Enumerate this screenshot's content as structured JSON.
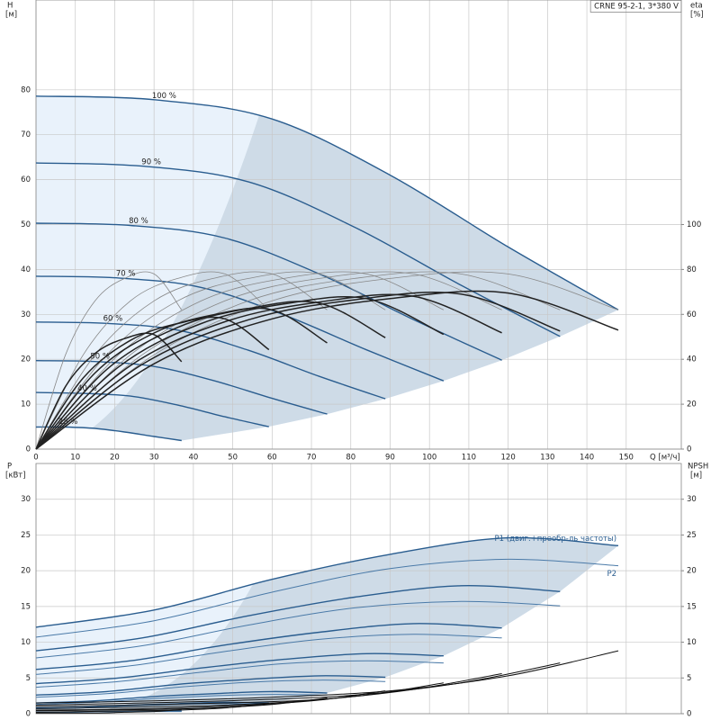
{
  "chart_data": [
    {
      "type": "line",
      "title": "CRNE 95-2-1, 3*380 V",
      "xlabel": "Q [м³/ч]",
      "ylabel": "H",
      "yunit": "[м]",
      "y2label": "eta",
      "y2unit": "[%]",
      "xlim": [
        0,
        164
      ],
      "xticks": [
        0,
        10,
        20,
        30,
        40,
        50,
        60,
        70,
        80,
        90,
        100,
        110,
        120,
        130,
        140,
        150
      ],
      "ylim": [
        0,
        100
      ],
      "yticks": [
        0,
        10,
        20,
        30,
        40,
        50,
        60,
        70,
        80
      ],
      "y2lim": [
        0,
        200
      ],
      "y2ticks": [
        0,
        20,
        40,
        60,
        80,
        100
      ],
      "grid": true,
      "series": [
        {
          "name": "100 %",
          "color": "#2a5d8f",
          "linewidth": 1.4,
          "x": [
            0,
            30,
            60,
            90,
            120,
            148
          ],
          "values": [
            78.6,
            77.8,
            73.5,
            61,
            45,
            31
          ]
        },
        {
          "name": "90 %",
          "color": "#2a5d8f",
          "linewidth": 1.4,
          "x": [
            0,
            27,
            54,
            81,
            108,
            133.2
          ],
          "values": [
            63.7,
            63.0,
            59.5,
            49.4,
            36.5,
            25.1
          ]
        },
        {
          "name": "80 %",
          "color": "#2a5d8f",
          "linewidth": 1.4,
          "x": [
            0,
            24,
            48,
            72,
            96,
            118.4
          ],
          "values": [
            50.3,
            49.8,
            47.0,
            39.0,
            28.8,
            19.8
          ]
        },
        {
          "name": "70 %",
          "color": "#2a5d8f",
          "linewidth": 1.4,
          "x": [
            0,
            21,
            42,
            63,
            84,
            103.6
          ],
          "values": [
            38.5,
            38.1,
            36.0,
            29.9,
            22.1,
            15.2
          ]
        },
        {
          "name": "60 %",
          "color": "#2a5d8f",
          "linewidth": 1.4,
          "x": [
            0,
            18,
            36,
            54,
            72,
            88.8
          ],
          "values": [
            28.3,
            28.0,
            26.5,
            22.0,
            16.2,
            11.2
          ]
        },
        {
          "name": "50 %",
          "color": "#2a5d8f",
          "linewidth": 1.4,
          "x": [
            0,
            15,
            30,
            45,
            60,
            74
          ],
          "values": [
            19.7,
            19.5,
            18.4,
            15.3,
            11.3,
            7.8
          ]
        },
        {
          "name": "40 %",
          "color": "#2a5d8f",
          "linewidth": 1.4,
          "x": [
            0,
            12,
            24,
            36,
            48,
            59.2
          ],
          "values": [
            12.6,
            12.4,
            11.8,
            9.8,
            7.2,
            5.0
          ]
        },
        {
          "name": "25 %",
          "color": "#2a5d8f",
          "linewidth": 1.4,
          "x": [
            0,
            7.5,
            15,
            22.5,
            30,
            37
          ],
          "values": [
            4.9,
            4.9,
            4.6,
            3.8,
            2.8,
            1.9
          ]
        },
        {
          "axis": "y2",
          "color": "#888888",
          "linewidth": 0.8,
          "x": [
            0,
            30,
            60,
            90,
            120,
            148
          ],
          "values": [
            0,
            42,
            66,
            76,
            78,
            62
          ]
        },
        {
          "axis": "y2",
          "color": "#888888",
          "linewidth": 0.8,
          "x": [
            0,
            27,
            54,
            81,
            108,
            133.2
          ],
          "values": [
            0,
            42,
            66,
            76,
            78,
            62
          ]
        },
        {
          "axis": "y2",
          "color": "#888888",
          "linewidth": 0.8,
          "x": [
            0,
            24,
            48,
            72,
            96,
            118.4
          ],
          "values": [
            0,
            42,
            66,
            76,
            78,
            62
          ]
        },
        {
          "axis": "y2",
          "color": "#888888",
          "linewidth": 0.8,
          "x": [
            0,
            21,
            42,
            63,
            84,
            103.6
          ],
          "values": [
            0,
            42,
            66,
            76,
            78,
            62
          ]
        },
        {
          "axis": "y2",
          "color": "#888888",
          "linewidth": 0.8,
          "x": [
            0,
            18,
            36,
            54,
            72,
            88.8
          ],
          "values": [
            0,
            42,
            66,
            76,
            78,
            62
          ]
        },
        {
          "axis": "y2",
          "color": "#888888",
          "linewidth": 0.8,
          "x": [
            0,
            15,
            30,
            45,
            60,
            74
          ],
          "values": [
            0,
            42,
            66,
            76,
            78,
            62
          ]
        },
        {
          "axis": "y2",
          "color": "#888888",
          "linewidth": 0.8,
          "x": [
            0,
            12,
            24,
            36,
            48,
            59.2
          ],
          "values": [
            0,
            42,
            66,
            76,
            78,
            62
          ]
        },
        {
          "axis": "y2",
          "color": "#888888",
          "linewidth": 0.8,
          "x": [
            0,
            7.5,
            15,
            22.5,
            30,
            37
          ],
          "values": [
            0,
            42,
            66,
            76,
            78,
            62
          ]
        },
        {
          "axis": "y2",
          "color": "#222222",
          "linewidth": 1.5,
          "x": [
            0,
            30,
            60,
            90,
            120,
            148
          ],
          "values": [
            0,
            38,
            58,
            67,
            69.5,
            53
          ]
        },
        {
          "axis": "y2",
          "color": "#222222",
          "linewidth": 1.5,
          "x": [
            0,
            27,
            54,
            81,
            108,
            133.2
          ],
          "values": [
            0,
            37.7,
            57.6,
            66.5,
            69,
            52.6
          ]
        },
        {
          "axis": "y2",
          "color": "#222222",
          "linewidth": 1.5,
          "x": [
            0,
            24,
            48,
            72,
            96,
            118.4
          ],
          "values": [
            0,
            37.2,
            56.7,
            65.5,
            68,
            51.8
          ]
        },
        {
          "axis": "y2",
          "color": "#222222",
          "linewidth": 1.5,
          "x": [
            0,
            21,
            42,
            63,
            84,
            103.6
          ],
          "values": [
            0,
            36.6,
            55.9,
            64.6,
            67,
            51.1
          ]
        },
        {
          "axis": "y2",
          "color": "#222222",
          "linewidth": 1.5,
          "x": [
            0,
            18,
            36,
            54,
            72,
            88.8
          ],
          "values": [
            0,
            35.5,
            54.2,
            62.6,
            65,
            49.6
          ]
        },
        {
          "axis": "y2",
          "color": "#222222",
          "linewidth": 1.5,
          "x": [
            0,
            15,
            30,
            45,
            60,
            74
          ],
          "values": [
            0,
            33.9,
            51.7,
            59.8,
            62,
            47.3
          ]
        },
        {
          "axis": "y2",
          "color": "#222222",
          "linewidth": 1.5,
          "x": [
            0,
            12,
            24,
            36,
            48,
            59.2
          ],
          "values": [
            0,
            31.7,
            48.4,
            55.9,
            58,
            44.3
          ]
        },
        {
          "axis": "y2",
          "color": "#222222",
          "linewidth": 1.5,
          "x": [
            0,
            7.5,
            15,
            22.5,
            30,
            37
          ],
          "values": [
            0,
            27.9,
            42.6,
            49.2,
            51,
            38.9
          ]
        }
      ]
    },
    {
      "type": "line",
      "ylabel": "P",
      "yunit": "[кВт]",
      "y2label": "NPSH",
      "y2unit": "[м]",
      "xlim": [
        0,
        164
      ],
      "xticks": [
        0,
        10,
        20,
        30,
        40,
        50,
        60,
        70,
        80,
        90,
        100,
        110,
        120,
        130,
        140,
        150
      ],
      "ylim": [
        0,
        35
      ],
      "yticks": [
        0,
        5,
        10,
        15,
        20,
        25,
        30
      ],
      "y2lim": [
        0,
        35
      ],
      "y2ticks": [
        0,
        5,
        10,
        15,
        20,
        25,
        30
      ],
      "grid": true,
      "series": [
        {
          "name": "P1 (двиг.+преобр-ль частоты)",
          "color": "#2a5d8f",
          "linewidth": 1.4,
          "x": [
            0,
            30,
            60,
            90,
            120,
            148
          ],
          "values": [
            12.1,
            14.5,
            18.8,
            22.3,
            24.6,
            23.5
          ]
        },
        {
          "color": "#2a5d8f",
          "linewidth": 1.4,
          "x": [
            0,
            27,
            54,
            81,
            108,
            133.2
          ],
          "values": [
            8.8,
            10.6,
            13.7,
            16.3,
            17.9,
            17.1
          ]
        },
        {
          "color": "#2a5d8f",
          "linewidth": 1.4,
          "x": [
            0,
            24,
            48,
            72,
            96,
            118.4
          ],
          "values": [
            6.2,
            7.4,
            9.6,
            11.4,
            12.6,
            12.0
          ]
        },
        {
          "color": "#2a5d8f",
          "linewidth": 1.4,
          "x": [
            0,
            21,
            42,
            63,
            84,
            103.6
          ],
          "values": [
            4.2,
            5.0,
            6.4,
            7.6,
            8.4,
            8.1
          ]
        },
        {
          "color": "#2a5d8f",
          "linewidth": 1.4,
          "x": [
            0,
            18,
            36,
            54,
            72,
            88.8
          ],
          "values": [
            2.6,
            3.1,
            4.1,
            4.8,
            5.3,
            5.1
          ]
        },
        {
          "color": "#2a5d8f",
          "linewidth": 1.4,
          "x": [
            0,
            15,
            30,
            45,
            60,
            74
          ],
          "values": [
            1.5,
            1.8,
            2.4,
            2.8,
            3.1,
            2.9
          ]
        },
        {
          "color": "#2a5d8f",
          "linewidth": 1.4,
          "x": [
            0,
            12,
            24,
            36,
            48,
            59.2
          ],
          "values": [
            0.8,
            0.9,
            1.2,
            1.4,
            1.6,
            1.5
          ]
        },
        {
          "color": "#2a5d8f",
          "linewidth": 1.4,
          "x": [
            0,
            7.5,
            15,
            22.5,
            30,
            37
          ],
          "values": [
            0.2,
            0.2,
            0.3,
            0.3,
            0.4,
            0.4
          ]
        },
        {
          "name": "P2",
          "color": "#4a7aa8",
          "linewidth": 1.0,
          "x": [
            0,
            30,
            60,
            90,
            120,
            148
          ],
          "values": [
            10.7,
            13,
            17,
            20.3,
            21.6,
            20.7
          ]
        },
        {
          "color": "#4a7aa8",
          "linewidth": 1.0,
          "x": [
            0,
            27,
            54,
            81,
            108,
            133.2
          ],
          "values": [
            7.8,
            9.5,
            12.4,
            14.8,
            15.7,
            15.1
          ]
        },
        {
          "color": "#4a7aa8",
          "linewidth": 1.0,
          "x": [
            0,
            24,
            48,
            72,
            96,
            118.4
          ],
          "values": [
            5.5,
            6.7,
            8.7,
            10.4,
            11.1,
            10.6
          ]
        },
        {
          "color": "#4a7aa8",
          "linewidth": 1.0,
          "x": [
            0,
            21,
            42,
            63,
            84,
            103.6
          ],
          "values": [
            3.7,
            4.5,
            5.8,
            7.0,
            7.4,
            7.1
          ]
        },
        {
          "color": "#4a7aa8",
          "linewidth": 1.0,
          "x": [
            0,
            18,
            36,
            54,
            72,
            88.8
          ],
          "values": [
            2.3,
            2.8,
            3.7,
            4.4,
            4.7,
            4.5
          ]
        },
        {
          "color": "#4a7aa8",
          "linewidth": 1.0,
          "x": [
            0,
            15,
            30,
            45,
            60,
            74
          ],
          "values": [
            1.3,
            1.6,
            2.1,
            2.5,
            2.7,
            2.6
          ]
        },
        {
          "color": "#4a7aa8",
          "linewidth": 1.0,
          "x": [
            0,
            12,
            24,
            36,
            48,
            59.2
          ],
          "values": [
            0.7,
            0.8,
            1.1,
            1.3,
            1.4,
            1.3
          ]
        },
        {
          "color": "#4a7aa8",
          "linewidth": 1.0,
          "x": [
            0,
            7.5,
            15,
            22.5,
            30,
            37
          ],
          "values": [
            0.2,
            0.2,
            0.3,
            0.3,
            0.3,
            0.3
          ]
        },
        {
          "axis": "y2",
          "color": "#111111",
          "linewidth": 1.0,
          "x": [
            0,
            30,
            60,
            90,
            120,
            148
          ],
          "values": [
            1.5,
            1.8,
            2.3,
            3.2,
            5.3,
            8.8
          ]
        },
        {
          "axis": "y2",
          "color": "#111111",
          "linewidth": 1.0,
          "x": [
            0,
            27,
            54,
            81,
            108,
            133.2
          ],
          "values": [
            1.2,
            1.5,
            1.9,
            2.6,
            4.3,
            7.1
          ]
        },
        {
          "axis": "y2",
          "color": "#111111",
          "linewidth": 1.0,
          "x": [
            0,
            24,
            48,
            72,
            96,
            118.4
          ],
          "values": [
            1.0,
            1.2,
            1.5,
            2.0,
            3.4,
            5.6
          ]
        },
        {
          "axis": "y2",
          "color": "#111111",
          "linewidth": 1.0,
          "x": [
            0,
            21,
            42,
            63,
            84,
            103.6
          ],
          "values": [
            0.7,
            0.9,
            1.1,
            1.6,
            2.6,
            4.3
          ]
        },
        {
          "axis": "y2",
          "color": "#111111",
          "linewidth": 1.0,
          "x": [
            0,
            18,
            36,
            54,
            72,
            88.8
          ],
          "values": [
            0.5,
            0.6,
            0.8,
            1.2,
            1.9,
            3.2
          ]
        },
        {
          "axis": "y2",
          "color": "#111111",
          "linewidth": 1.0,
          "x": [
            0,
            15,
            30,
            45,
            60,
            74
          ],
          "values": [
            0.4,
            0.5,
            0.6,
            0.8,
            1.3,
            2.2
          ]
        },
        {
          "axis": "y2",
          "color": "#111111",
          "linewidth": 1.0,
          "x": [
            0,
            12,
            24,
            36,
            48,
            59.2
          ],
          "values": [
            0.2,
            0.3,
            0.4,
            0.5,
            0.8,
            1.4
          ]
        },
        {
          "axis": "y2",
          "color": "#111111",
          "linewidth": 1.0,
          "x": [
            0,
            7.5,
            15,
            22.5,
            30,
            37
          ],
          "values": [
            0.1,
            0.1,
            0.1,
            0.2,
            0.3,
            0.6
          ]
        }
      ]
    }
  ]
}
